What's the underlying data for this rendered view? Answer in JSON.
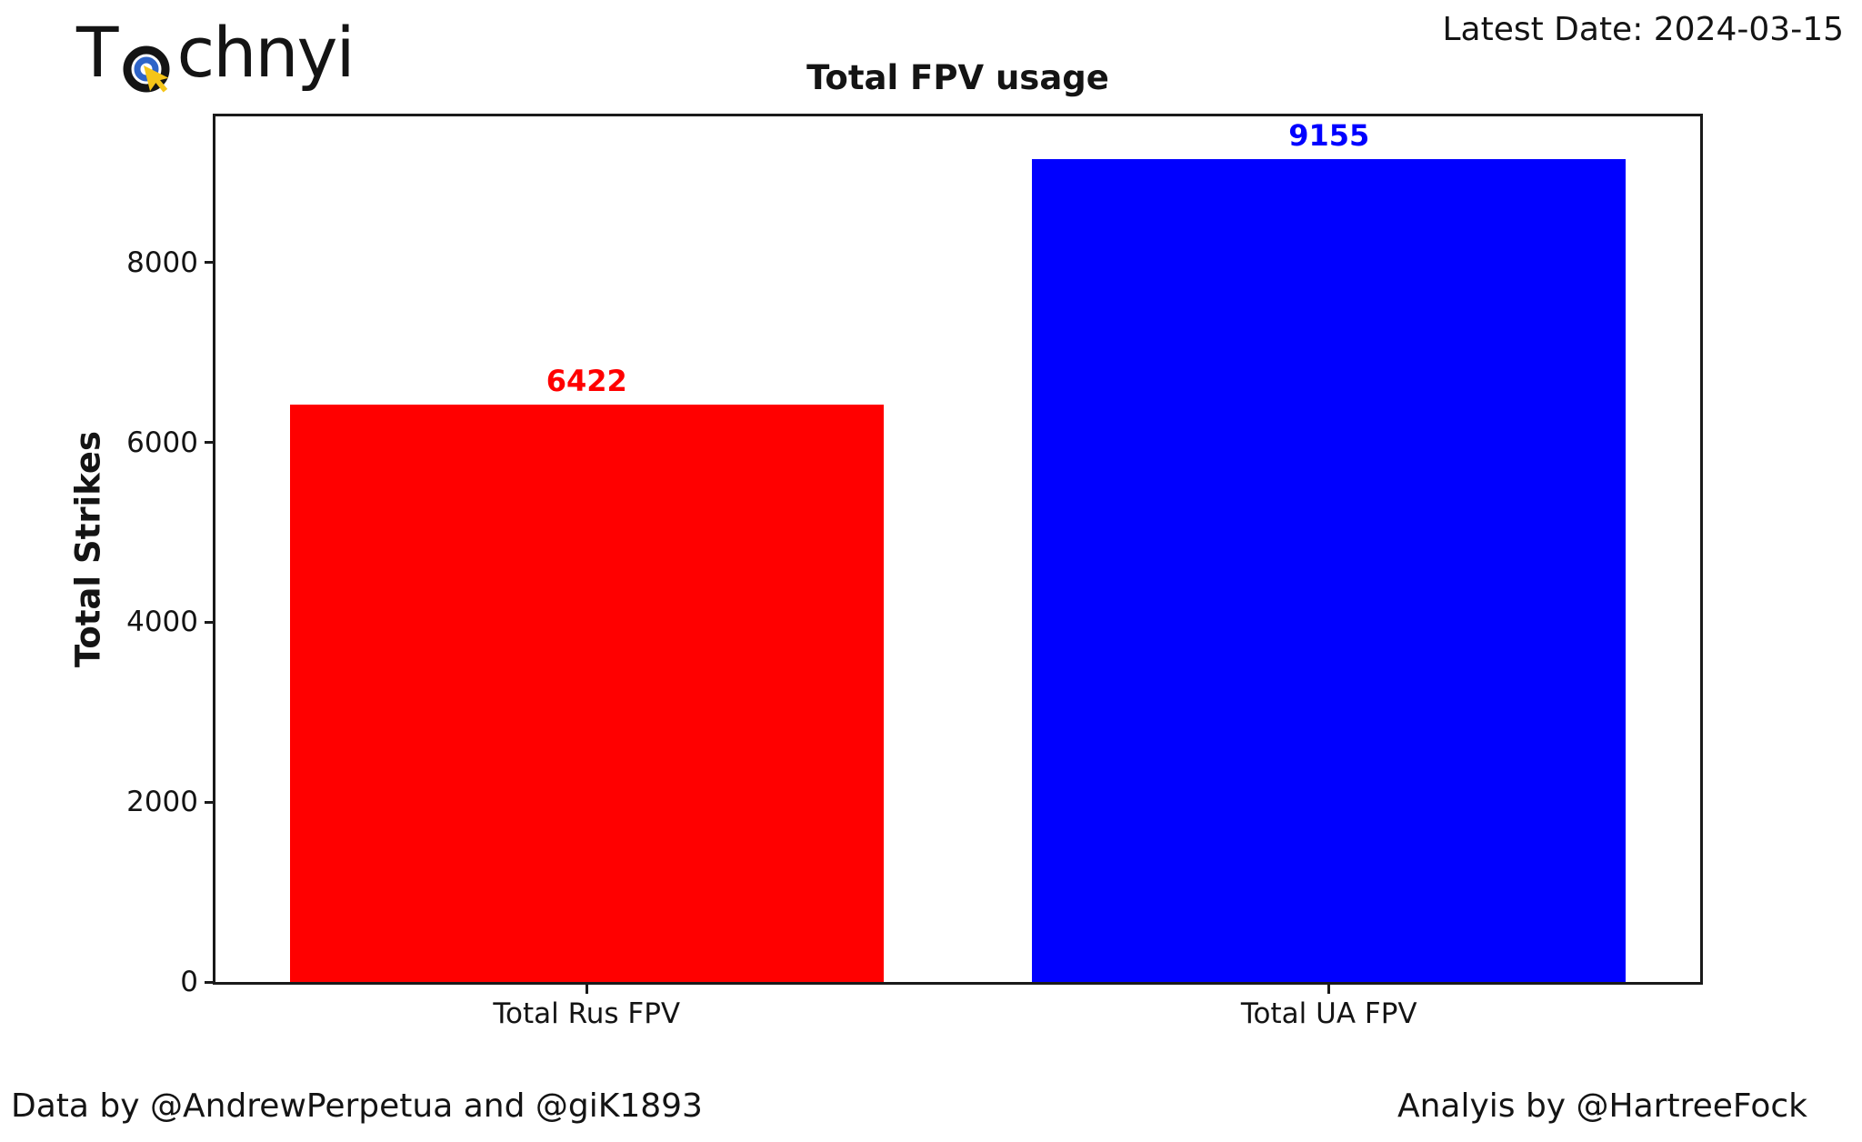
{
  "header": {
    "logo": {
      "prefix": "T",
      "suffix": "chnyi",
      "icon": "target-cursor-icon"
    },
    "latest_date": "Latest Date: 2024-03-15"
  },
  "chart_data": {
    "type": "bar",
    "title": "Total FPV usage",
    "xlabel": "",
    "ylabel": "Total Strikes",
    "categories": [
      "Total Rus FPV",
      "Total UA FPV"
    ],
    "values": [
      6422,
      9155
    ],
    "value_labels": [
      "6422",
      "9155"
    ],
    "bar_colors": [
      "#ff0000",
      "#0000ff"
    ],
    "value_label_colors": [
      "#ff0000",
      "#0000ff"
    ],
    "yticks": [
      0,
      2000,
      4000,
      6000,
      8000
    ],
    "ylim": [
      0,
      9628
    ],
    "bar_width_fraction": 0.8,
    "grid": false,
    "legend": "none",
    "background": "#ffffff",
    "spine_color": "#1a1a1a"
  },
  "footer": {
    "data_credit": "Data by @AndrewPerpetua and @giK1893",
    "analysis_credit": "Analyis by @HartreeFock"
  },
  "colors": {
    "logo_black": "#141414",
    "logo_blue": "#2e64c8",
    "logo_yellow": "#f5c518"
  }
}
